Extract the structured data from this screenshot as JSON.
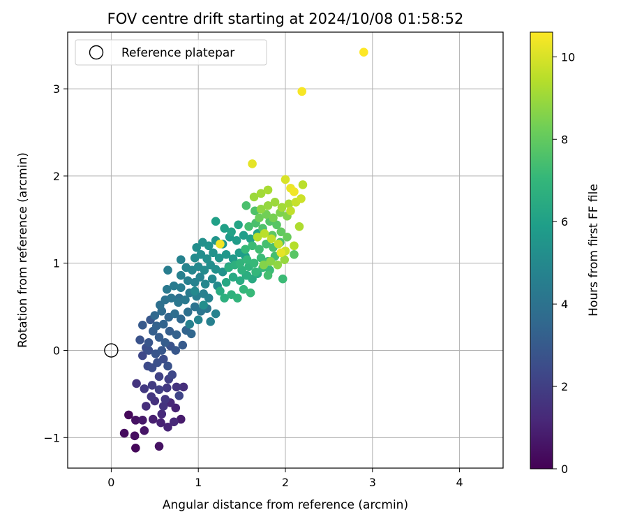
{
  "chart_data": {
    "type": "scatter",
    "title": "FOV centre drift starting at 2024/10/08 01:58:52",
    "xlabel": "Angular distance from reference (arcmin)",
    "ylabel": "Rotation from reference (arcmin)",
    "xlim": [
      -0.5,
      4.5
    ],
    "ylim": [
      -1.35,
      3.65
    ],
    "xticks": [
      0,
      1,
      2,
      3,
      4
    ],
    "yticks": [
      -1,
      0,
      1,
      2,
      3
    ],
    "grid": true,
    "legend": {
      "placement": "top-left",
      "entries": [
        {
          "label": "Reference platepar",
          "marker": "open-circle"
        }
      ]
    },
    "reference_point": {
      "x": 0,
      "y": 0
    },
    "colorbar": {
      "label": "Hours from first FF file",
      "range": [
        0,
        10.6
      ],
      "ticks": [
        0,
        2,
        4,
        6,
        8,
        10
      ],
      "colormap": "viridis"
    },
    "colormap_stops": [
      "#440154",
      "#482878",
      "#3e4989",
      "#31688e",
      "#26828e",
      "#1f9e89",
      "#35b779",
      "#6ece58",
      "#b5de2b",
      "#fde725"
    ],
    "points": [
      [
        0.28,
        -1.12,
        0.2
      ],
      [
        0.55,
        -1.1,
        0.5
      ],
      [
        0.15,
        -0.95,
        0.3
      ],
      [
        0.27,
        -0.98,
        0.4
      ],
      [
        0.38,
        -0.92,
        0.6
      ],
      [
        0.2,
        -0.74,
        0.2
      ],
      [
        0.28,
        -0.8,
        0.5
      ],
      [
        0.36,
        -0.8,
        0.7
      ],
      [
        0.48,
        -0.79,
        0.9
      ],
      [
        0.57,
        -0.83,
        1.0
      ],
      [
        0.65,
        -0.88,
        1.1
      ],
      [
        0.72,
        -0.82,
        1.2
      ],
      [
        0.8,
        -0.79,
        0.8
      ],
      [
        0.58,
        -0.73,
        1.3
      ],
      [
        0.4,
        -0.64,
        1.4
      ],
      [
        0.5,
        -0.58,
        1.5
      ],
      [
        0.6,
        -0.64,
        1.6
      ],
      [
        0.68,
        -0.6,
        1.2
      ],
      [
        0.74,
        -0.66,
        1.0
      ],
      [
        0.62,
        -0.56,
        1.7
      ],
      [
        0.29,
        -0.38,
        1.6
      ],
      [
        0.38,
        -0.44,
        1.8
      ],
      [
        0.47,
        -0.4,
        1.9
      ],
      [
        0.55,
        -0.45,
        2.0
      ],
      [
        0.64,
        -0.43,
        1.8
      ],
      [
        0.75,
        -0.42,
        1.6
      ],
      [
        0.83,
        -0.42,
        1.4
      ],
      [
        0.55,
        -0.3,
        2.1
      ],
      [
        0.66,
        -0.33,
        2.0
      ],
      [
        0.78,
        -0.52,
        2.2
      ],
      [
        0.46,
        -0.53,
        1.7
      ],
      [
        0.36,
        -0.06,
        2.3
      ],
      [
        0.42,
        -0.18,
        2.4
      ],
      [
        0.47,
        -0.2,
        2.5
      ],
      [
        0.53,
        -0.14,
        2.6
      ],
      [
        0.6,
        -0.1,
        2.5
      ],
      [
        0.65,
        -0.18,
        2.7
      ],
      [
        0.7,
        -0.28,
        2.3
      ],
      [
        0.51,
        -0.04,
        2.8
      ],
      [
        0.58,
        0.0,
        2.9
      ],
      [
        0.43,
        0.0,
        2.6
      ],
      [
        0.4,
        0.03,
        2.5
      ],
      [
        0.68,
        0.05,
        2.7
      ],
      [
        0.74,
        0.0,
        2.9
      ],
      [
        0.82,
        0.06,
        3.0
      ],
      [
        0.62,
        0.09,
        3.1
      ],
      [
        0.55,
        0.15,
        3.1
      ],
      [
        0.48,
        0.22,
        3.2
      ],
      [
        0.43,
        0.09,
        2.8
      ],
      [
        0.52,
        0.28,
        3.3
      ],
      [
        0.6,
        0.3,
        3.4
      ],
      [
        0.67,
        0.22,
        3.2
      ],
      [
        0.75,
        0.18,
        3.3
      ],
      [
        0.86,
        0.23,
        3.4
      ],
      [
        0.92,
        0.19,
        3.5
      ],
      [
        0.36,
        0.29,
        3.0
      ],
      [
        0.5,
        0.4,
        3.6
      ],
      [
        0.58,
        0.45,
        3.7
      ],
      [
        0.66,
        0.38,
        3.5
      ],
      [
        0.73,
        0.42,
        3.8
      ],
      [
        0.8,
        0.36,
        3.6
      ],
      [
        0.88,
        0.44,
        3.9
      ],
      [
        0.96,
        0.5,
        4.0
      ],
      [
        1.03,
        0.45,
        4.1
      ],
      [
        1.1,
        0.48,
        4.2
      ],
      [
        1.14,
        0.33,
        4.6
      ],
      [
        1.2,
        0.42,
        4.7
      ],
      [
        0.56,
        0.52,
        3.9
      ],
      [
        0.62,
        0.58,
        4.0
      ],
      [
        0.69,
        0.6,
        4.1
      ],
      [
        0.77,
        0.55,
        4.2
      ],
      [
        0.85,
        0.58,
        4.3
      ],
      [
        0.9,
        0.66,
        4.4
      ],
      [
        0.98,
        0.62,
        4.5
      ],
      [
        1.06,
        0.65,
        4.6
      ],
      [
        1.12,
        0.6,
        4.7
      ],
      [
        0.64,
        0.7,
        4.3
      ],
      [
        0.72,
        0.74,
        4.4
      ],
      [
        0.8,
        0.72,
        4.5
      ],
      [
        0.88,
        0.8,
        4.6
      ],
      [
        0.96,
        0.78,
        4.7
      ],
      [
        1.02,
        0.84,
        4.8
      ],
      [
        1.08,
        0.76,
        4.9
      ],
      [
        1.16,
        0.82,
        5.0
      ],
      [
        1.22,
        0.74,
        5.1
      ],
      [
        0.65,
        0.92,
        4.5
      ],
      [
        0.8,
        0.86,
        4.6
      ],
      [
        0.86,
        0.95,
        4.8
      ],
      [
        0.93,
        0.92,
        4.9
      ],
      [
        1.0,
        0.96,
        5.0
      ],
      [
        1.07,
        0.92,
        5.1
      ],
      [
        1.14,
        0.98,
        5.2
      ],
      [
        1.2,
        0.93,
        5.3
      ],
      [
        1.28,
        0.9,
        5.4
      ],
      [
        1.35,
        0.96,
        5.5
      ],
      [
        0.8,
        1.04,
        4.7
      ],
      [
        0.96,
        1.06,
        5.1
      ],
      [
        1.03,
        1.1,
        5.2
      ],
      [
        1.1,
        1.05,
        5.3
      ],
      [
        1.17,
        1.12,
        5.4
      ],
      [
        1.24,
        1.06,
        5.5
      ],
      [
        1.32,
        1.1,
        5.6
      ],
      [
        1.4,
        1.05,
        5.7
      ],
      [
        1.47,
        1.12,
        5.8
      ],
      [
        1.54,
        1.08,
        5.9
      ],
      [
        0.98,
        1.18,
        5.2
      ],
      [
        1.05,
        1.24,
        5.3
      ],
      [
        1.12,
        1.2,
        5.4
      ],
      [
        1.2,
        1.26,
        5.5
      ],
      [
        1.28,
        1.22,
        5.6
      ],
      [
        1.36,
        1.3,
        5.7
      ],
      [
        1.44,
        1.26,
        5.8
      ],
      [
        1.52,
        1.32,
        5.9
      ],
      [
        1.6,
        1.28,
        6.0
      ],
      [
        1.68,
        1.34,
        6.1
      ],
      [
        1.3,
        1.4,
        6.0
      ],
      [
        1.38,
        1.36,
        6.1
      ],
      [
        1.46,
        1.44,
        6.2
      ],
      [
        1.2,
        1.48,
        6.0
      ],
      [
        1.32,
        0.78,
        6.3
      ],
      [
        1.4,
        0.84,
        6.4
      ],
      [
        1.48,
        0.8,
        6.5
      ],
      [
        1.56,
        0.86,
        6.6
      ],
      [
        1.25,
        0.68,
        6.5
      ],
      [
        1.3,
        0.6,
        6.7
      ],
      [
        1.38,
        0.64,
        6.8
      ],
      [
        1.45,
        0.6,
        6.9
      ],
      [
        1.52,
        0.7,
        7.0
      ],
      [
        1.6,
        0.66,
        7.1
      ],
      [
        1.35,
        0.95,
        6.6
      ],
      [
        1.42,
        0.98,
        6.7
      ],
      [
        1.5,
        0.92,
        6.8
      ],
      [
        1.58,
        0.96,
        6.9
      ],
      [
        1.66,
        0.9,
        7.0
      ],
      [
        1.74,
        0.95,
        7.1
      ],
      [
        1.82,
        0.92,
        7.2
      ],
      [
        1.48,
        1.0,
        6.9
      ],
      [
        1.56,
        1.04,
        7.0
      ],
      [
        1.64,
        1.0,
        7.1
      ],
      [
        1.72,
        1.06,
        7.2
      ],
      [
        1.8,
        1.02,
        7.3
      ],
      [
        1.88,
        1.08,
        7.4
      ],
      [
        1.54,
        1.16,
        7.1
      ],
      [
        1.62,
        1.2,
        7.2
      ],
      [
        1.7,
        1.16,
        7.3
      ],
      [
        1.78,
        1.22,
        7.4
      ],
      [
        1.86,
        1.18,
        7.5
      ],
      [
        1.94,
        1.24,
        7.6
      ],
      [
        1.58,
        1.42,
        7.4
      ],
      [
        1.66,
        1.46,
        7.5
      ],
      [
        1.74,
        1.4,
        7.6
      ],
      [
        1.82,
        1.48,
        7.7
      ],
      [
        1.9,
        1.44,
        7.8
      ],
      [
        1.55,
        1.66,
        7.5
      ],
      [
        1.65,
        1.6,
        7.6
      ],
      [
        1.97,
        0.82,
        7.2
      ],
      [
        1.8,
        0.86,
        7.4
      ],
      [
        2.1,
        1.1,
        7.8
      ],
      [
        1.85,
        1.32,
        7.9
      ],
      [
        1.95,
        1.36,
        8.0
      ],
      [
        2.02,
        1.3,
        8.1
      ],
      [
        1.7,
        1.52,
        8.2
      ],
      [
        1.78,
        1.56,
        8.3
      ],
      [
        1.86,
        1.52,
        8.4
      ],
      [
        1.94,
        1.58,
        8.5
      ],
      [
        2.02,
        1.54,
        8.6
      ],
      [
        1.75,
        0.98,
        8.6
      ],
      [
        1.83,
        1.02,
        8.7
      ],
      [
        1.91,
        0.98,
        8.8
      ],
      [
        1.99,
        1.04,
        8.9
      ],
      [
        1.72,
        1.62,
        8.8
      ],
      [
        1.8,
        1.66,
        8.9
      ],
      [
        1.88,
        1.7,
        9.0
      ],
      [
        1.96,
        1.64,
        9.1
      ],
      [
        2.04,
        1.68,
        9.2
      ],
      [
        1.64,
        1.76,
        9.0
      ],
      [
        1.72,
        1.8,
        9.1
      ],
      [
        1.8,
        1.84,
        9.2
      ],
      [
        2.16,
        1.42,
        9.3
      ],
      [
        2.1,
        1.2,
        9.4
      ],
      [
        1.68,
        1.3,
        9.4
      ],
      [
        1.76,
        1.34,
        9.5
      ],
      [
        1.84,
        1.28,
        9.6
      ],
      [
        1.92,
        1.22,
        9.7
      ],
      [
        2.0,
        1.14,
        9.8
      ],
      [
        2.06,
        1.6,
        9.6
      ],
      [
        2.12,
        1.7,
        9.7
      ],
      [
        2.18,
        1.74,
        9.8
      ],
      [
        2.2,
        1.9,
        9.5
      ],
      [
        2.0,
        1.96,
        10.0
      ],
      [
        1.95,
        1.12,
        10.2
      ],
      [
        2.06,
        1.86,
        10.3
      ],
      [
        2.1,
        1.82,
        10.4
      ],
      [
        1.62,
        2.14,
        10.2
      ],
      [
        1.25,
        1.22,
        10.4
      ],
      [
        2.19,
        2.97,
        10.5
      ],
      [
        2.9,
        3.42,
        10.6
      ],
      [
        1.55,
        0.86,
        6.3
      ],
      [
        1.62,
        0.82,
        6.4
      ],
      [
        1.68,
        0.88,
        6.5
      ],
      [
        1.06,
        0.52,
        5.2
      ],
      [
        0.96,
        0.68,
        5.0
      ],
      [
        0.9,
        0.3,
        4.6
      ],
      [
        1.0,
        0.35,
        4.8
      ],
      [
        0.78,
        0.6,
        3.9
      ],
      [
        0.45,
        0.35,
        2.9
      ],
      [
        0.33,
        0.12,
        2.7
      ]
    ]
  }
}
